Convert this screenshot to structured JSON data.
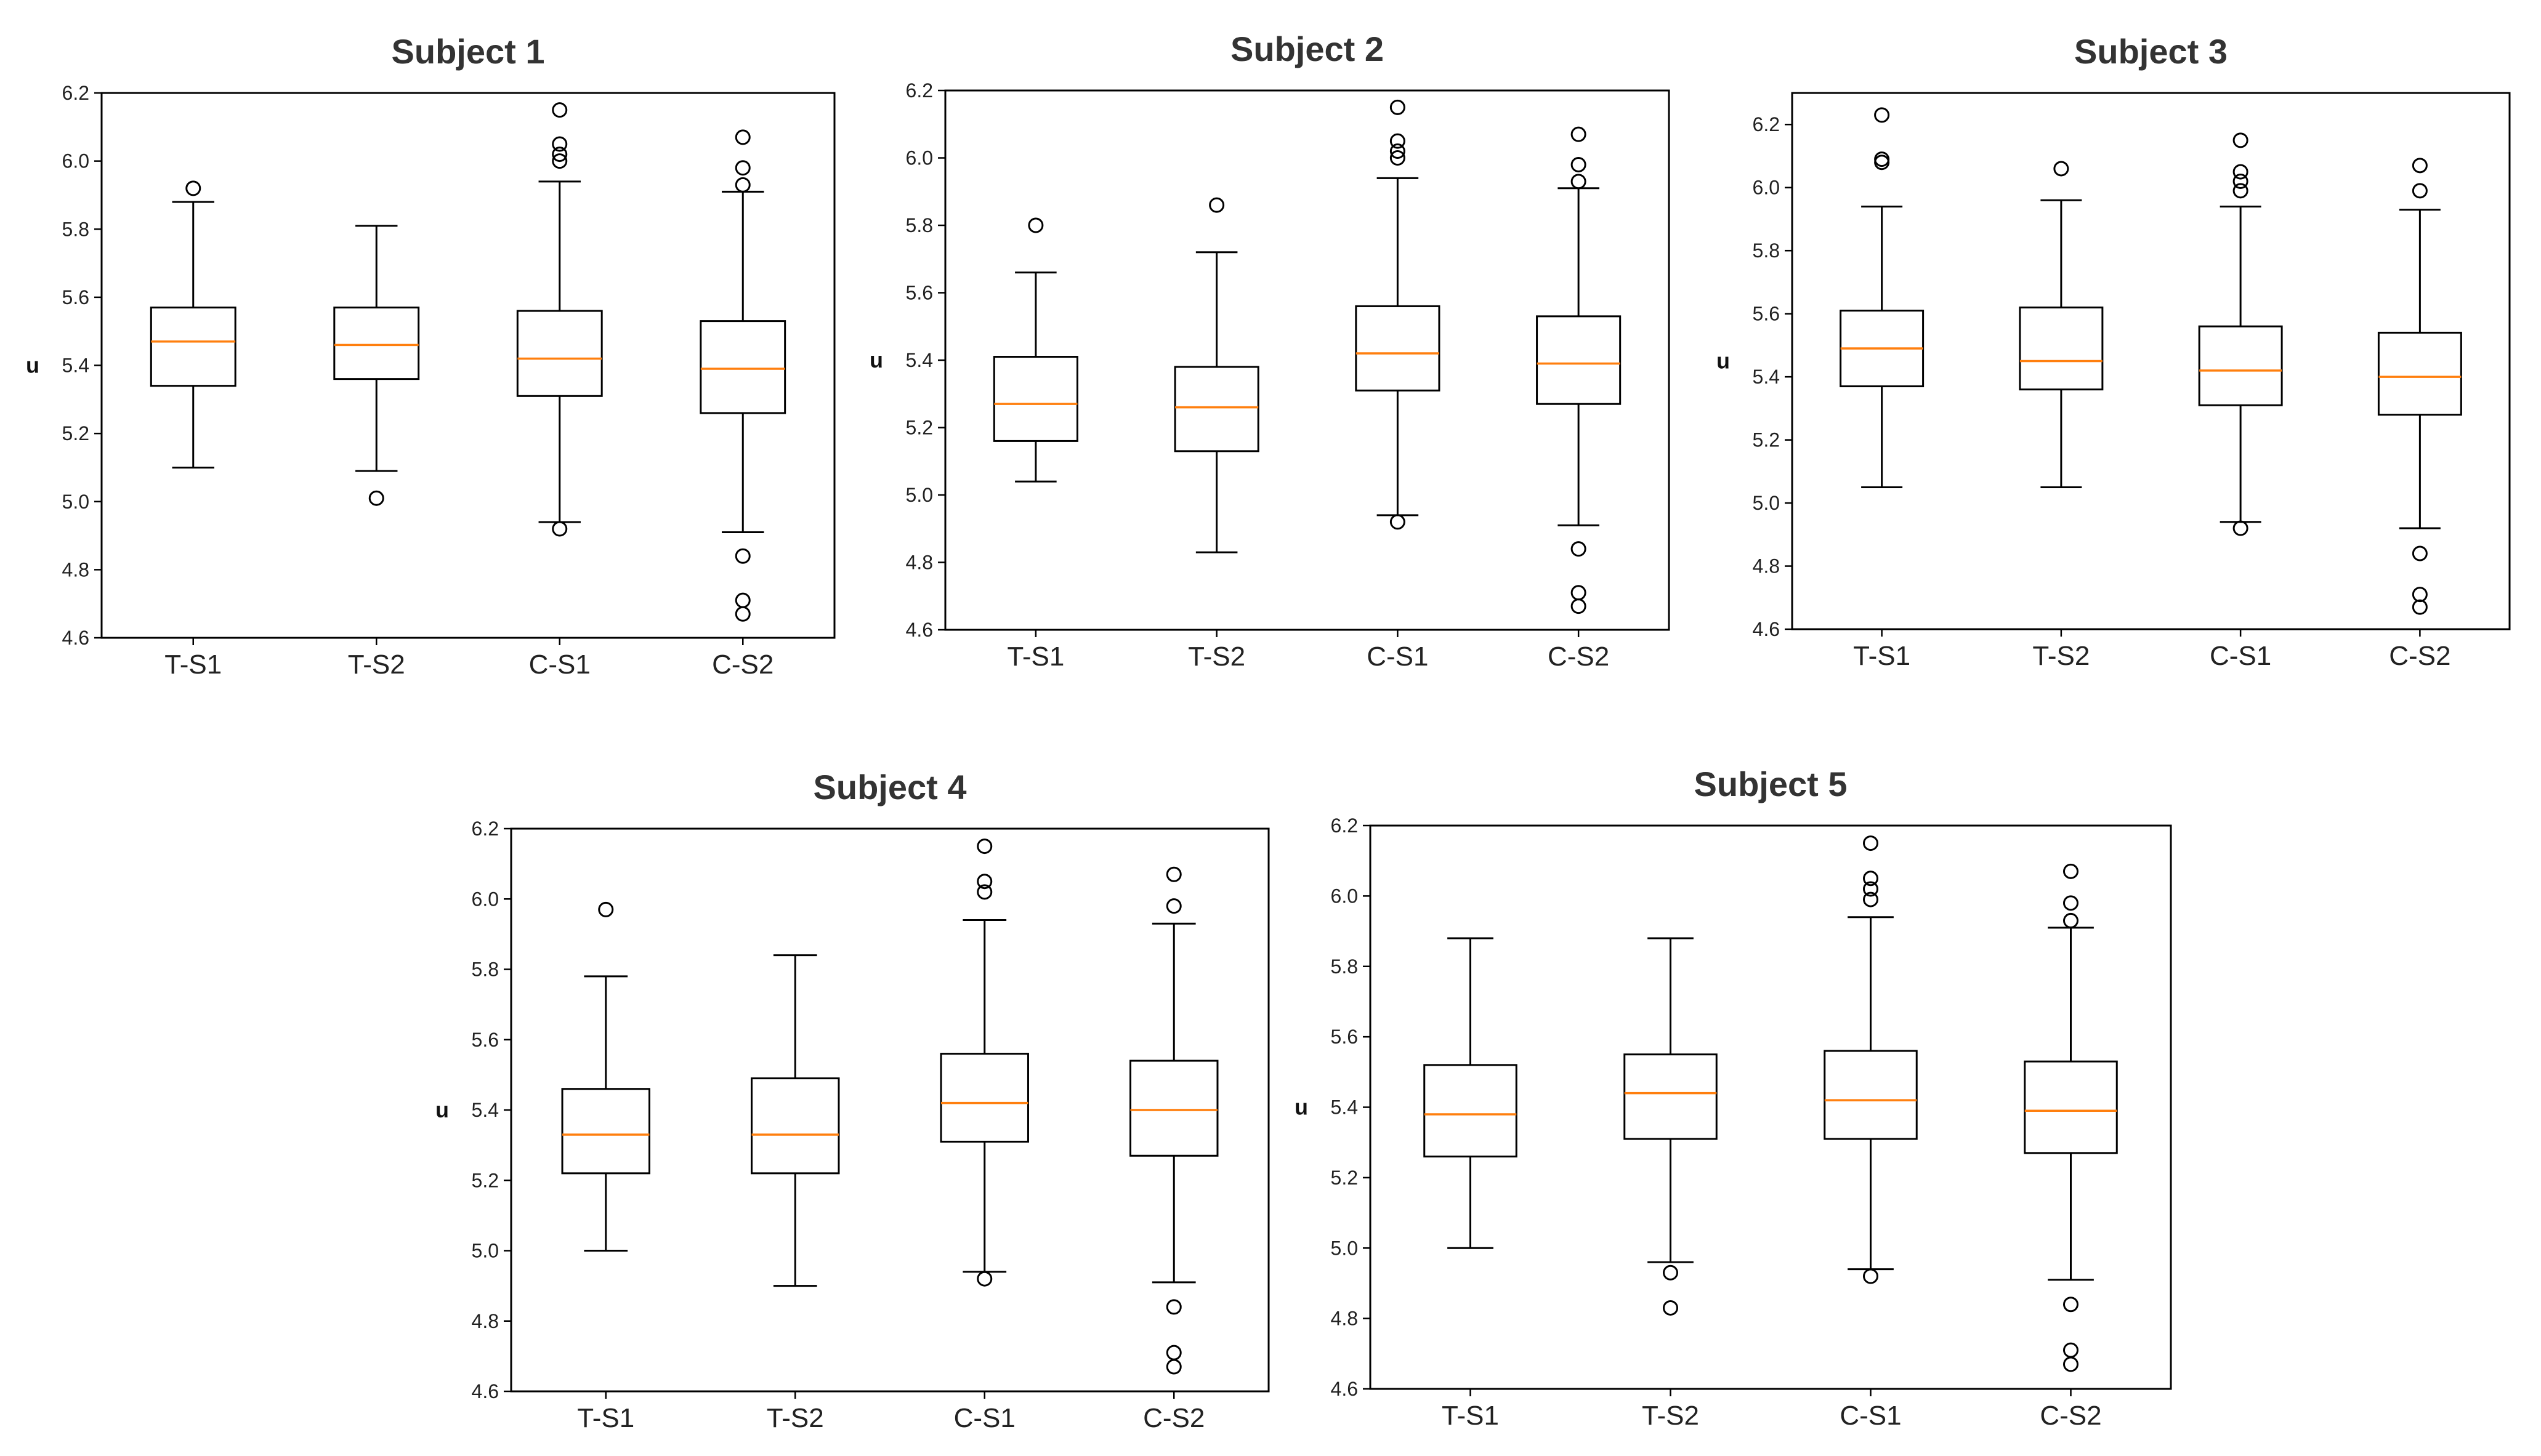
{
  "chart_data": [
    {
      "type": "box",
      "title": "Subject 1",
      "xlabel": "",
      "ylabel": "u",
      "categories": [
        "T-S1",
        "T-S2",
        "C-S1",
        "C-S2"
      ],
      "ylim": [
        4.6,
        6.2
      ],
      "yticks": [
        "4.6",
        "4.8",
        "5.0",
        "5.2",
        "5.4",
        "5.6",
        "5.8",
        "6.0",
        "6.2"
      ],
      "grid": false,
      "boxes": [
        {
          "name": "T-S1",
          "whislo": 5.1,
          "q1": 5.34,
          "med": 5.47,
          "q3": 5.57,
          "whishi": 5.88,
          "fliers": [
            5.92
          ]
        },
        {
          "name": "T-S2",
          "whislo": 5.09,
          "q1": 5.36,
          "med": 5.46,
          "q3": 5.57,
          "whishi": 5.81,
          "fliers": [
            5.01
          ]
        },
        {
          "name": "C-S1",
          "whislo": 4.94,
          "q1": 5.31,
          "med": 5.42,
          "q3": 5.56,
          "whishi": 5.94,
          "fliers": [
            4.92,
            6.0,
            6.02,
            6.05,
            6.15
          ]
        },
        {
          "name": "C-S2",
          "whislo": 4.91,
          "q1": 5.26,
          "med": 5.39,
          "q3": 5.53,
          "whishi": 5.91,
          "fliers": [
            4.67,
            4.71,
            4.84,
            5.93,
            5.98,
            6.07
          ]
        }
      ]
    },
    {
      "type": "box",
      "title": "Subject 2",
      "xlabel": "",
      "ylabel": "u",
      "categories": [
        "T-S1",
        "T-S2",
        "C-S1",
        "C-S2"
      ],
      "ylim": [
        4.6,
        6.2
      ],
      "yticks": [
        "4.6",
        "4.8",
        "5.0",
        "5.2",
        "5.4",
        "5.6",
        "5.8",
        "6.0",
        "6.2"
      ],
      "grid": false,
      "boxes": [
        {
          "name": "T-S1",
          "whislo": 5.04,
          "q1": 5.16,
          "med": 5.27,
          "q3": 5.41,
          "whishi": 5.66,
          "fliers": [
            5.8
          ]
        },
        {
          "name": "T-S2",
          "whislo": 4.83,
          "q1": 5.13,
          "med": 5.26,
          "q3": 5.38,
          "whishi": 5.72,
          "fliers": [
            5.86
          ]
        },
        {
          "name": "C-S1",
          "whislo": 4.94,
          "q1": 5.31,
          "med": 5.42,
          "q3": 5.56,
          "whishi": 5.94,
          "fliers": [
            4.92,
            6.0,
            6.02,
            6.05,
            6.15
          ]
        },
        {
          "name": "C-S2",
          "whislo": 4.91,
          "q1": 5.27,
          "med": 5.39,
          "q3": 5.53,
          "whishi": 5.91,
          "fliers": [
            4.67,
            4.71,
            4.84,
            5.93,
            5.98,
            6.07
          ]
        }
      ]
    },
    {
      "type": "box",
      "title": "Subject 3",
      "xlabel": "",
      "ylabel": "u",
      "categories": [
        "T-S1",
        "T-S2",
        "C-S1",
        "C-S2"
      ],
      "ylim": [
        4.6,
        6.3
      ],
      "yticks": [
        "4.6",
        "4.8",
        "5.0",
        "5.2",
        "5.4",
        "5.6",
        "5.8",
        "6.0",
        "6.2"
      ],
      "grid": false,
      "boxes": [
        {
          "name": "T-S1",
          "whislo": 5.05,
          "q1": 5.37,
          "med": 5.49,
          "q3": 5.61,
          "whishi": 5.94,
          "fliers": [
            6.08,
            6.09,
            6.23
          ]
        },
        {
          "name": "T-S2",
          "whislo": 5.05,
          "q1": 5.36,
          "med": 5.45,
          "q3": 5.62,
          "whishi": 5.96,
          "fliers": [
            6.06
          ]
        },
        {
          "name": "C-S1",
          "whislo": 4.94,
          "q1": 5.31,
          "med": 5.42,
          "q3": 5.56,
          "whishi": 5.94,
          "fliers": [
            4.92,
            5.99,
            6.02,
            6.05,
            6.15
          ]
        },
        {
          "name": "C-S2",
          "whislo": 4.92,
          "q1": 5.28,
          "med": 5.4,
          "q3": 5.54,
          "whishi": 5.93,
          "fliers": [
            4.67,
            4.71,
            4.84,
            5.99,
            6.07
          ]
        }
      ]
    },
    {
      "type": "box",
      "title": "Subject 4",
      "xlabel": "",
      "ylabel": "u",
      "categories": [
        "T-S1",
        "T-S2",
        "C-S1",
        "C-S2"
      ],
      "ylim": [
        4.6,
        6.2
      ],
      "yticks": [
        "4.6",
        "4.8",
        "5.0",
        "5.2",
        "5.4",
        "5.6",
        "5.8",
        "6.0",
        "6.2"
      ],
      "grid": false,
      "boxes": [
        {
          "name": "T-S1",
          "whislo": 5.0,
          "q1": 5.22,
          "med": 5.33,
          "q3": 5.46,
          "whishi": 5.78,
          "fliers": [
            5.97
          ]
        },
        {
          "name": "T-S2",
          "whislo": 4.9,
          "q1": 5.22,
          "med": 5.33,
          "q3": 5.49,
          "whishi": 5.84,
          "fliers": []
        },
        {
          "name": "C-S1",
          "whislo": 4.94,
          "q1": 5.31,
          "med": 5.42,
          "q3": 5.56,
          "whishi": 5.94,
          "fliers": [
            4.92,
            6.02,
            6.05,
            6.15
          ]
        },
        {
          "name": "C-S2",
          "whislo": 4.91,
          "q1": 5.27,
          "med": 5.4,
          "q3": 5.54,
          "whishi": 5.93,
          "fliers": [
            4.67,
            4.71,
            4.84,
            5.98,
            6.07
          ]
        }
      ]
    },
    {
      "type": "box",
      "title": "Subject 5",
      "xlabel": "",
      "ylabel": "u",
      "categories": [
        "T-S1",
        "T-S2",
        "C-S1",
        "C-S2"
      ],
      "ylim": [
        4.6,
        6.2
      ],
      "yticks": [
        "4.6",
        "4.8",
        "5.0",
        "5.2",
        "5.4",
        "5.6",
        "5.8",
        "6.0",
        "6.2"
      ],
      "grid": false,
      "boxes": [
        {
          "name": "T-S1",
          "whislo": 5.0,
          "q1": 5.26,
          "med": 5.38,
          "q3": 5.52,
          "whishi": 5.88,
          "fliers": []
        },
        {
          "name": "T-S2",
          "whislo": 4.96,
          "q1": 5.31,
          "med": 5.44,
          "q3": 5.55,
          "whishi": 5.88,
          "fliers": [
            4.83,
            4.93
          ]
        },
        {
          "name": "C-S1",
          "whislo": 4.94,
          "q1": 5.31,
          "med": 5.42,
          "q3": 5.56,
          "whishi": 5.94,
          "fliers": [
            4.92,
            5.99,
            6.02,
            6.05,
            6.15
          ]
        },
        {
          "name": "C-S2",
          "whislo": 4.91,
          "q1": 5.27,
          "med": 5.39,
          "q3": 5.53,
          "whishi": 5.91,
          "fliers": [
            4.67,
            4.71,
            4.84,
            5.93,
            5.98,
            6.07
          ]
        }
      ]
    }
  ],
  "colors": {
    "median": "#ff7f0e",
    "box_edge": "#000000",
    "axes_edge": "#000000",
    "background": "#ffffff"
  }
}
